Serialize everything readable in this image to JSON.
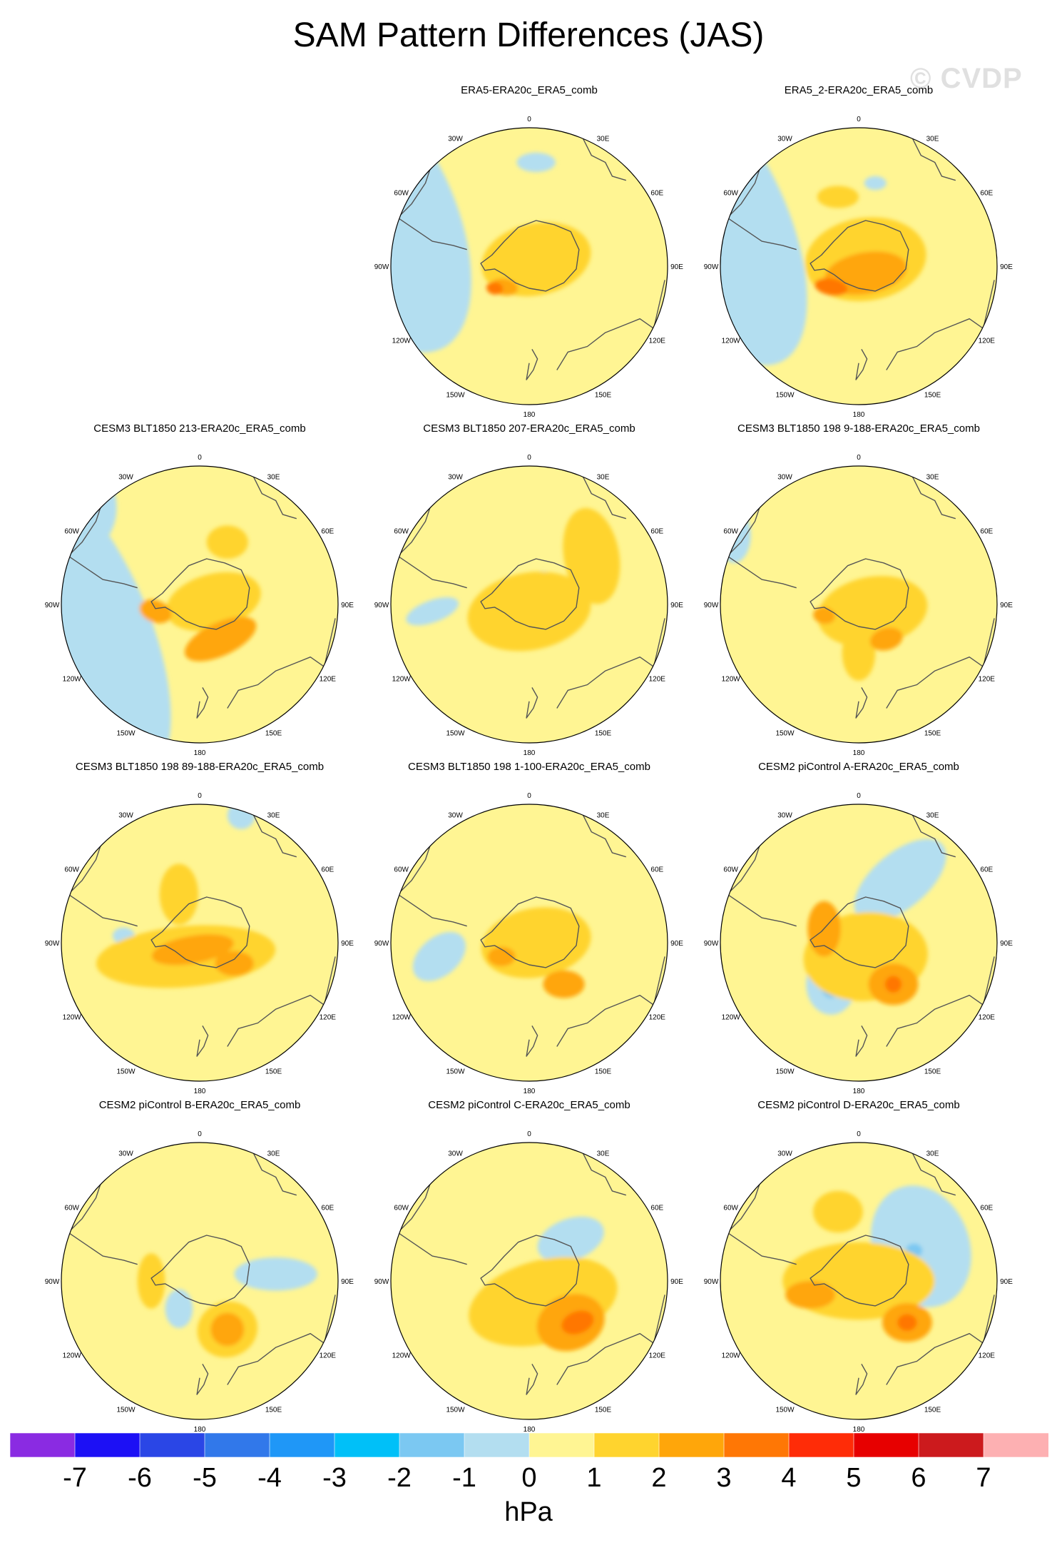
{
  "title": "SAM Pattern Differences (JAS)",
  "watermark": "© CVDP",
  "lon_labels": [
    "0",
    "30E",
    "60E",
    "90E",
    "120E",
    "150E",
    "180",
    "150W",
    "120W",
    "90W",
    "60W",
    "30W"
  ],
  "colors": {
    "levels": [
      "#8a2be2",
      "#1c10f5",
      "#2a46e6",
      "#3178ea",
      "#1f97f7",
      "#00c0f8",
      "#7bc8f2",
      "#b3def0",
      "#fff593",
      "#ffd42e",
      "#ffa60a",
      "#ff7705",
      "#ff2c07",
      "#e70000",
      "#cc1a1d",
      "#fdb0b2"
    ],
    "coast": "#555555",
    "ring": "#000000"
  },
  "colorbar": {
    "ticks": [
      "-7",
      "-6",
      "-5",
      "-4",
      "-3",
      "-2",
      "-1",
      "0",
      "1",
      "2",
      "3",
      "4",
      "5",
      "6",
      "7"
    ],
    "units": "hPa"
  },
  "panels": [
    {
      "title": "ERA5-ERA20c_ERA5_comb",
      "bg": 8,
      "blobs": [
        [
          -1.1,
          -0.4,
          0.55,
          1.1,
          -25,
          7
        ],
        [
          0.05,
          -0.75,
          0.14,
          0.07,
          0,
          7
        ],
        [
          0.05,
          -0.05,
          0.4,
          0.26,
          -12,
          9
        ],
        [
          -0.12,
          0.09,
          0.16,
          0.07,
          10,
          9
        ],
        [
          -0.18,
          0.15,
          0.1,
          0.06,
          10,
          10
        ],
        [
          -0.25,
          0.16,
          0.06,
          0.045,
          10,
          11
        ]
      ]
    },
    {
      "title": "ERA5_2-ERA20c_ERA5_comb",
      "bg": 8,
      "blobs": [
        [
          -1.05,
          -0.35,
          0.52,
          1.15,
          -25,
          7
        ],
        [
          0.12,
          -0.6,
          0.08,
          0.05,
          0,
          7
        ],
        [
          0.05,
          -0.05,
          0.44,
          0.3,
          -8,
          9
        ],
        [
          -0.15,
          -0.5,
          0.15,
          0.08,
          0,
          9
        ],
        [
          0.05,
          0.05,
          0.3,
          0.15,
          -10,
          10
        ],
        [
          -0.2,
          0.15,
          0.12,
          0.06,
          10,
          11
        ]
      ]
    },
    {
      "title": "CESM3 BLT1850 213-ERA20c_ERA5_comb",
      "bg": 8,
      "blobs": [
        [
          -0.95,
          0.1,
          0.55,
          1.3,
          -25,
          7
        ],
        [
          -0.9,
          -0.7,
          0.3,
          0.35,
          0,
          7
        ],
        [
          0.1,
          -0.02,
          0.35,
          0.2,
          -15,
          9
        ],
        [
          0.2,
          -0.45,
          0.15,
          0.12,
          0,
          9
        ],
        [
          0.15,
          0.25,
          0.28,
          0.12,
          -25,
          10
        ],
        [
          -0.32,
          0.05,
          0.12,
          0.08,
          20,
          10
        ]
      ]
    },
    {
      "title": "CESM3 BLT1850 207-ERA20c_ERA5_comb",
      "bg": 8,
      "blobs": [
        [
          -0.7,
          0.05,
          0.2,
          0.08,
          -20,
          7
        ],
        [
          0.1,
          -0.12,
          0.12,
          0.12,
          0,
          7
        ],
        [
          0.0,
          0.05,
          0.45,
          0.28,
          -10,
          9
        ],
        [
          0.45,
          -0.35,
          0.2,
          0.35,
          -10,
          9
        ]
      ]
    },
    {
      "title": "CESM3 BLT1850 198 9-188-ERA20c_ERA5_comb",
      "bg": 8,
      "blobs": [
        [
          -0.9,
          -0.5,
          0.12,
          0.2,
          0,
          7
        ],
        [
          0.1,
          0.05,
          0.4,
          0.25,
          -10,
          9
        ],
        [
          0.0,
          0.35,
          0.12,
          0.2,
          0,
          9
        ],
        [
          -0.25,
          0.08,
          0.08,
          0.06,
          10,
          10
        ],
        [
          0.2,
          0.25,
          0.12,
          0.08,
          -15,
          10
        ]
      ]
    },
    {
      "title": "CESM3 BLT1850 198 89-188-ERA20c_ERA5_comb",
      "bg": 8,
      "blobs": [
        [
          -0.55,
          -0.05,
          0.08,
          0.06,
          0,
          7
        ],
        [
          0.3,
          -0.92,
          0.1,
          0.1,
          0,
          7
        ],
        [
          -0.1,
          0.1,
          0.65,
          0.22,
          -5,
          9
        ],
        [
          -0.15,
          -0.35,
          0.14,
          0.22,
          0,
          9
        ],
        [
          -0.05,
          0.05,
          0.3,
          0.1,
          -10,
          10
        ],
        [
          0.25,
          0.15,
          0.14,
          0.09,
          0,
          10
        ]
      ]
    },
    {
      "title": "CESM3 BLT1850 198 1-100-ERA20c_ERA5_comb",
      "bg": 8,
      "blobs": [
        [
          -0.65,
          0.1,
          0.22,
          0.14,
          -40,
          7
        ],
        [
          0.05,
          0.0,
          0.4,
          0.25,
          -10,
          9
        ],
        [
          -0.2,
          0.1,
          0.1,
          0.07,
          0,
          10
        ],
        [
          0.25,
          0.3,
          0.15,
          0.1,
          0,
          10
        ]
      ]
    },
    {
      "title": "CESM2 piControl A-ERA20c_ERA5_comb",
      "bg": 8,
      "blobs": [
        [
          0.3,
          -0.45,
          0.4,
          0.2,
          -40,
          7
        ],
        [
          -0.2,
          0.3,
          0.18,
          0.22,
          0,
          7
        ],
        [
          -0.2,
          0.32,
          0.07,
          0.08,
          0,
          6
        ],
        [
          0.05,
          0.1,
          0.45,
          0.32,
          -5,
          9
        ],
        [
          -0.25,
          -0.1,
          0.12,
          0.2,
          0,
          10
        ],
        [
          0.25,
          0.3,
          0.18,
          0.15,
          0,
          10
        ],
        [
          0.25,
          0.3,
          0.06,
          0.06,
          0,
          11
        ]
      ]
    },
    {
      "title": "CESM2 piControl B-ERA20c_ERA5_comb",
      "bg": 8,
      "blobs": [
        [
          0.55,
          -0.05,
          0.3,
          0.12,
          0,
          7
        ],
        [
          -0.15,
          0.2,
          0.1,
          0.14,
          0,
          7
        ],
        [
          0.2,
          0.35,
          0.22,
          0.2,
          -20,
          9
        ],
        [
          -0.35,
          0.0,
          0.1,
          0.2,
          0,
          9
        ],
        [
          0.2,
          0.35,
          0.12,
          0.12,
          -20,
          10
        ]
      ]
    },
    {
      "title": "CESM2 piControl C-ERA20c_ERA5_comb",
      "bg": 8,
      "blobs": [
        [
          0.3,
          -0.3,
          0.25,
          0.15,
          -20,
          7
        ],
        [
          0.1,
          0.15,
          0.55,
          0.3,
          -15,
          9
        ],
        [
          0.3,
          0.3,
          0.25,
          0.2,
          -20,
          10
        ],
        [
          0.35,
          0.3,
          0.12,
          0.08,
          -20,
          11
        ]
      ]
    },
    {
      "title": "CESM2 piControl D-ERA20c_ERA5_comb",
      "bg": 8,
      "blobs": [
        [
          0.45,
          -0.25,
          0.35,
          0.45,
          -20,
          7
        ],
        [
          0.4,
          -0.22,
          0.06,
          0.05,
          0,
          6
        ],
        [
          0.0,
          0.0,
          0.55,
          0.28,
          0,
          9
        ],
        [
          -0.15,
          -0.5,
          0.18,
          0.15,
          0,
          9
        ],
        [
          -0.35,
          0.1,
          0.18,
          0.1,
          0,
          10
        ],
        [
          0.35,
          0.3,
          0.18,
          0.14,
          0,
          10
        ],
        [
          0.35,
          0.3,
          0.07,
          0.06,
          0,
          11
        ]
      ]
    }
  ]
}
